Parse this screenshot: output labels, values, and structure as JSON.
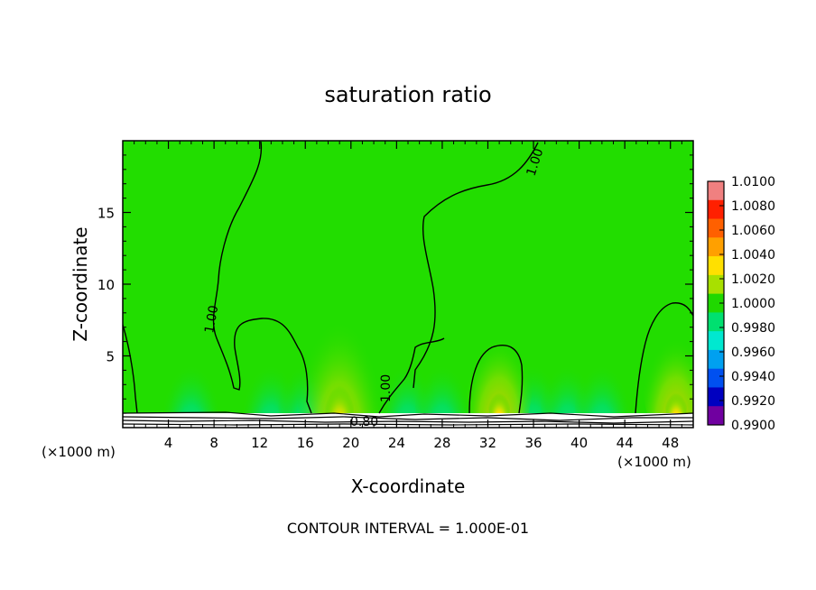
{
  "chart_data": {
    "type": "heatmap",
    "title": "saturation ratio",
    "xlabel": "X-coordinate",
    "ylabel": "Z-coordinate",
    "x_unit": "(×1000 m)",
    "y_unit": "(×1000 m)",
    "xlim": [
      0,
      50
    ],
    "ylim": [
      0,
      20
    ],
    "x_ticks": [
      4,
      8,
      12,
      16,
      20,
      24,
      28,
      32,
      36,
      40,
      44,
      48
    ],
    "y_ticks": [
      5,
      10,
      15
    ],
    "contour_interval_label": "CONTOUR INTERVAL = 1.000E-01",
    "contour_labels": [
      "1.00",
      "1.00",
      "1.00",
      "0.80"
    ],
    "colorbar": {
      "min": 0.99,
      "max": 1.01,
      "tick_labels": [
        "1.0100",
        "1.0080",
        "1.0060",
        "1.0040",
        "1.0020",
        "1.0000",
        "0.9980",
        "0.9960",
        "0.9940",
        "0.9920",
        "0.9900"
      ],
      "colors": [
        "#f08080",
        "#ff2000",
        "#ff6000",
        "#ffa000",
        "#ffe000",
        "#a8e000",
        "#20d800",
        "#00e070",
        "#00e8d0",
        "#00a0f0",
        "#0050f0",
        "#0000c0",
        "#7000a0"
      ]
    },
    "maxima_x": [
      19,
      33,
      48.5
    ],
    "field_background": "#22dd00"
  }
}
